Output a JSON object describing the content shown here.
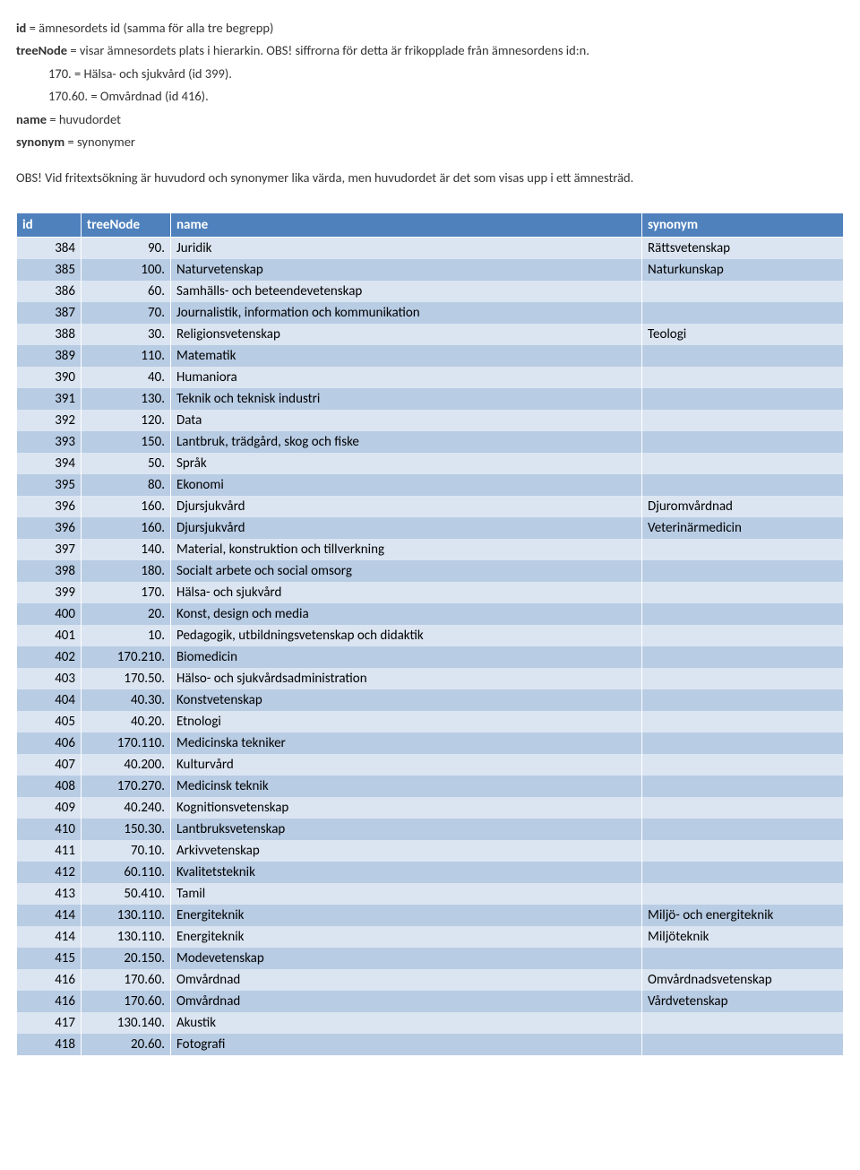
{
  "intro": {
    "line1_a": "id",
    "line1_b": " = ämnesordets id (samma för alla tre begrepp)",
    "line2_a": "treeNode",
    "line2_b": " = visar ämnesordets plats i hierarkin. OBS! siffrorna för detta är frikopplade från ämnesordens id:n.",
    "line3": "170. = Hälsa- och sjukvård (id 399).",
    "line4": "170.60. = Omvårdnad (id 416).",
    "line5_a": "name",
    "line5_b": " = huvudordet",
    "line6_a": "synonym",
    "line6_b": " = synonymer",
    "line7": "OBS! Vid fritextsökning är huvudord och synonymer lika värda, men huvudordet är det som visas upp i ett ämnesträd."
  },
  "table": {
    "header_bg": "#4f81bd",
    "header_fg": "#ffffff",
    "row_alt0_bg": "#dbe5f1",
    "row_alt1_bg": "#b8cce4",
    "columns": [
      "id",
      "treeNode",
      "name",
      "synonym"
    ],
    "rows": [
      {
        "id": "384",
        "treeNode": "90.",
        "name": "Juridik",
        "synonym": "Rättsvetenskap"
      },
      {
        "id": "385",
        "treeNode": "100.",
        "name": "Naturvetenskap",
        "synonym": "Naturkunskap"
      },
      {
        "id": "386",
        "treeNode": "60.",
        "name": "Samhälls- och beteendevetenskap",
        "synonym": ""
      },
      {
        "id": "387",
        "treeNode": "70.",
        "name": "Journalistik, information och kommunikation",
        "synonym": ""
      },
      {
        "id": "388",
        "treeNode": "30.",
        "name": "Religionsvetenskap",
        "synonym": "Teologi"
      },
      {
        "id": "389",
        "treeNode": "110.",
        "name": "Matematik",
        "synonym": ""
      },
      {
        "id": "390",
        "treeNode": "40.",
        "name": "Humaniora",
        "synonym": ""
      },
      {
        "id": "391",
        "treeNode": "130.",
        "name": "Teknik och teknisk industri",
        "synonym": ""
      },
      {
        "id": "392",
        "treeNode": "120.",
        "name": "Data",
        "synonym": ""
      },
      {
        "id": "393",
        "treeNode": "150.",
        "name": "Lantbruk, trädgård, skog och fiske",
        "synonym": ""
      },
      {
        "id": "394",
        "treeNode": "50.",
        "name": "Språk",
        "synonym": ""
      },
      {
        "id": "395",
        "treeNode": "80.",
        "name": "Ekonomi",
        "synonym": ""
      },
      {
        "id": "396",
        "treeNode": "160.",
        "name": "Djursjukvård",
        "synonym": "Djuromvårdnad"
      },
      {
        "id": "396",
        "treeNode": "160.",
        "name": "Djursjukvård",
        "synonym": "Veterinärmedicin"
      },
      {
        "id": "397",
        "treeNode": "140.",
        "name": "Material, konstruktion och tillverkning",
        "synonym": ""
      },
      {
        "id": "398",
        "treeNode": "180.",
        "name": "Socialt arbete och social omsorg",
        "synonym": ""
      },
      {
        "id": "399",
        "treeNode": "170.",
        "name": "Hälsa- och sjukvård",
        "synonym": ""
      },
      {
        "id": "400",
        "treeNode": "20.",
        "name": "Konst, design och media",
        "synonym": ""
      },
      {
        "id": "401",
        "treeNode": "10.",
        "name": "Pedagogik, utbildningsvetenskap och didaktik",
        "synonym": ""
      },
      {
        "id": "402",
        "treeNode": "170.210.",
        "name": "Biomedicin",
        "synonym": ""
      },
      {
        "id": "403",
        "treeNode": "170.50.",
        "name": "Hälso- och sjukvårdsadministration",
        "synonym": ""
      },
      {
        "id": "404",
        "treeNode": "40.30.",
        "name": "Konstvetenskap",
        "synonym": ""
      },
      {
        "id": "405",
        "treeNode": "40.20.",
        "name": "Etnologi",
        "synonym": ""
      },
      {
        "id": "406",
        "treeNode": "170.110.",
        "name": "Medicinska tekniker",
        "synonym": ""
      },
      {
        "id": "407",
        "treeNode": "40.200.",
        "name": "Kulturvård",
        "synonym": ""
      },
      {
        "id": "408",
        "treeNode": "170.270.",
        "name": "Medicinsk teknik",
        "synonym": ""
      },
      {
        "id": "409",
        "treeNode": "40.240.",
        "name": "Kognitionsvetenskap",
        "synonym": ""
      },
      {
        "id": "410",
        "treeNode": "150.30.",
        "name": "Lantbruksvetenskap",
        "synonym": ""
      },
      {
        "id": "411",
        "treeNode": "70.10.",
        "name": "Arkivvetenskap",
        "synonym": ""
      },
      {
        "id": "412",
        "treeNode": "60.110.",
        "name": "Kvalitetsteknik",
        "synonym": ""
      },
      {
        "id": "413",
        "treeNode": "50.410.",
        "name": "Tamil",
        "synonym": ""
      },
      {
        "id": "414",
        "treeNode": "130.110.",
        "name": "Energiteknik",
        "synonym": "Miljö- och energiteknik"
      },
      {
        "id": "414",
        "treeNode": "130.110.",
        "name": "Energiteknik",
        "synonym": "Miljöteknik"
      },
      {
        "id": "415",
        "treeNode": "20.150.",
        "name": "Modevetenskap",
        "synonym": ""
      },
      {
        "id": "416",
        "treeNode": "170.60.",
        "name": "Omvårdnad",
        "synonym": "Omvårdnadsvetenskap"
      },
      {
        "id": "416",
        "treeNode": "170.60.",
        "name": "Omvårdnad",
        "synonym": "Vårdvetenskap"
      },
      {
        "id": "417",
        "treeNode": "130.140.",
        "name": "Akustik",
        "synonym": ""
      },
      {
        "id": "418",
        "treeNode": "20.60.",
        "name": "Fotografi",
        "synonym": ""
      }
    ]
  }
}
